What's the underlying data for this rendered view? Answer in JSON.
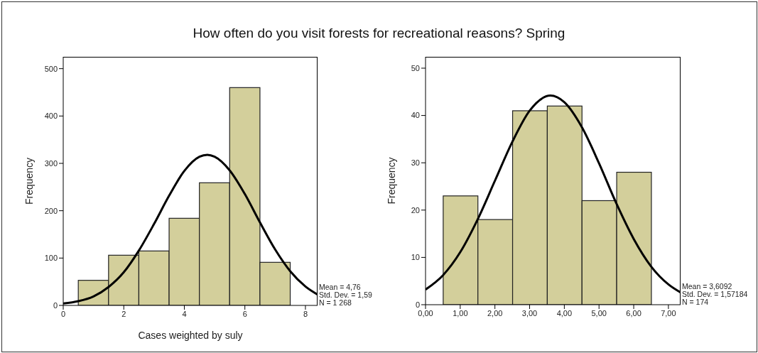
{
  "chart_data": [
    {
      "type": "histogram",
      "title": "How often do you visit forests for recreational reasons?  Spring",
      "xlabel": "Cases weighted by suly",
      "ylabel": "Frequency",
      "bins": [
        0.5,
        1.5,
        2.5,
        3.5,
        4.5,
        5.5,
        6.5,
        7.5
      ],
      "values": [
        53,
        106,
        115,
        184,
        259,
        460,
        91
      ],
      "color": "#d3cf9b",
      "series": [
        {
          "type": "line",
          "color": "#000000",
          "x": [
            0,
            0.5,
            1,
            1.5,
            2,
            2.5,
            3,
            3.5,
            4,
            4.5,
            4.76,
            5,
            5.5,
            6,
            6.5,
            7,
            7.5,
            8,
            8.4
          ],
          "values": [
            4,
            9,
            19,
            39,
            70,
            116,
            172,
            232,
            284,
            314,
            318,
            314,
            285,
            235,
            175,
            118,
            72,
            40,
            23
          ]
        }
      ],
      "xlim": [
        0,
        8.4
      ],
      "xticks": [
        0,
        2,
        4,
        6,
        8
      ],
      "ylim": [
        0,
        525
      ],
      "yticks": [
        0,
        100,
        200,
        300,
        400,
        500
      ],
      "grid": false,
      "legend": false,
      "marker": "none",
      "annotations": [
        "Mean = 4,76",
        "Std. Dev. = 1,59",
        "N = 1 268"
      ]
    },
    {
      "type": "histogram",
      "ylabel": "Frequency",
      "bins": [
        0.5,
        1.5,
        2.5,
        3.5,
        4.5,
        5.5,
        6.5
      ],
      "values": [
        23,
        18,
        41,
        42,
        22,
        28
      ],
      "color": "#d3cf9b",
      "series": [
        {
          "type": "line",
          "color": "#000000",
          "x": [
            0,
            0.5,
            1,
            1.5,
            2,
            2.5,
            3,
            3.6,
            4,
            4.5,
            5,
            5.5,
            6,
            6.5,
            7,
            7.35
          ],
          "values": [
            3.2,
            6.2,
            11.1,
            18,
            26.2,
            34.4,
            41,
            44.2,
            42.8,
            37.6,
            29.9,
            21.4,
            13.9,
            8.1,
            4.3,
            2.6
          ]
        }
      ],
      "xlim": [
        0,
        7.35
      ],
      "xticks": [
        {
          "value": 0,
          "label": "0,00"
        },
        {
          "value": 1,
          "label": "1,00"
        },
        {
          "value": 2,
          "label": "2,00"
        },
        {
          "value": 3,
          "label": "3,00"
        },
        {
          "value": 4,
          "label": "4,00"
        },
        {
          "value": 5,
          "label": "5,00"
        },
        {
          "value": 6,
          "label": "6,00"
        },
        {
          "value": 7,
          "label": "7,00"
        }
      ],
      "ylim": [
        0,
        52.4
      ],
      "yticks": [
        0,
        10,
        20,
        30,
        40,
        50
      ],
      "grid": false,
      "legend": false,
      "marker": "none",
      "annotations": [
        "Mean = 3,6092",
        "Std. Dev. = 1,57184",
        "N = 174"
      ]
    }
  ]
}
